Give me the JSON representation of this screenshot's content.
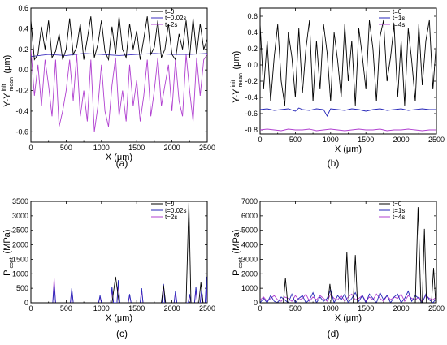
{
  "chart_data": [
    {
      "panel": "(a)",
      "type": "line",
      "xlabel": "X (μm)",
      "ylabel_main": "Y-Y",
      "ylabel_sub_top": "init",
      "ylabel_sub_bottom": "mean",
      "ylabel_unit": "(μm)",
      "xlim": [
        0,
        2500
      ],
      "ylim": [
        -0.7,
        0.6
      ],
      "xticks": [
        0,
        500,
        1000,
        1500,
        2000,
        2500
      ],
      "yticks": [
        -0.6,
        -0.4,
        -0.2,
        0.0,
        0.2,
        0.4,
        0.6
      ],
      "ytick_labels": [
        "-0.6",
        "-0.4",
        "-0.2",
        "0.0",
        "0.2",
        "0.4",
        "0.6"
      ],
      "legend_position": "top-right",
      "series": [
        {
          "name": "t=0",
          "color": "#000000",
          "x": [
            0,
            50,
            100,
            150,
            200,
            250,
            300,
            350,
            400,
            450,
            500,
            550,
            600,
            650,
            700,
            750,
            800,
            850,
            900,
            950,
            1000,
            1050,
            1100,
            1150,
            1200,
            1250,
            1300,
            1350,
            1400,
            1450,
            1500,
            1550,
            1600,
            1650,
            1700,
            1750,
            1800,
            1850,
            1900,
            1950,
            2000,
            2050,
            2100,
            2150,
            2200,
            2250,
            2300,
            2350,
            2400,
            2450,
            2500
          ],
          "y": [
            0.48,
            0.1,
            0.15,
            0.42,
            0.2,
            0.48,
            0.12,
            0.18,
            0.35,
            0.1,
            0.2,
            0.5,
            0.15,
            0.22,
            0.45,
            0.1,
            0.3,
            0.52,
            0.12,
            0.25,
            0.48,
            0.18,
            0.1,
            0.42,
            0.15,
            0.52,
            0.2,
            0.12,
            0.45,
            0.2,
            0.38,
            0.1,
            0.3,
            0.52,
            0.15,
            0.22,
            0.48,
            0.12,
            0.2,
            0.45,
            0.15,
            0.1,
            0.35,
            0.2,
            0.48,
            0.12,
            0.5,
            0.15,
            0.45,
            0.2,
            0.3
          ]
        },
        {
          "name": "t=0.02s",
          "color": "#3d2fbf",
          "x": [
            0,
            250,
            500,
            750,
            1000,
            1250,
            1500,
            1750,
            2000,
            2250,
            2500
          ],
          "y": [
            0.13,
            0.15,
            0.14,
            0.16,
            0.15,
            0.14,
            0.15,
            0.16,
            0.15,
            0.15,
            0.16
          ]
        },
        {
          "name": "t=2s",
          "color": "#b040d0",
          "x": [
            0,
            50,
            100,
            150,
            200,
            250,
            300,
            350,
            400,
            450,
            500,
            550,
            600,
            650,
            700,
            750,
            800,
            850,
            900,
            950,
            1000,
            1050,
            1100,
            1150,
            1200,
            1250,
            1300,
            1350,
            1400,
            1450,
            1500,
            1550,
            1600,
            1650,
            1700,
            1750,
            1800,
            1850,
            1900,
            1950,
            2000,
            2050,
            2100,
            2150,
            2200,
            2250,
            2300,
            2350,
            2400,
            2450,
            2500
          ],
          "y": [
            0.2,
            -0.25,
            0.05,
            -0.35,
            0.1,
            -0.15,
            -0.45,
            0.1,
            -0.55,
            -0.4,
            -0.2,
            0.1,
            -0.3,
            0.15,
            -0.45,
            -0.2,
            -0.5,
            0.1,
            -0.6,
            -0.35,
            0.05,
            -0.4,
            -0.55,
            -0.15,
            0.12,
            -0.45,
            -0.2,
            -0.5,
            0.05,
            -0.35,
            -0.1,
            -0.5,
            -0.25,
            0.1,
            -0.45,
            -0.2,
            0.12,
            -0.35,
            -0.15,
            0.05,
            -0.4,
            0.1,
            -0.3,
            -0.45,
            0.15,
            -0.2,
            -0.5,
            0.12,
            -0.25,
            0.1,
            0.15
          ]
        }
      ]
    },
    {
      "panel": "(b)",
      "type": "line",
      "xlabel": "X (μm)",
      "ylabel_main": "Y-Y",
      "ylabel_sub_top": "init",
      "ylabel_sub_bottom": "mean",
      "ylabel_unit": "(μm)",
      "xlim": [
        0,
        2500
      ],
      "ylim": [
        -0.85,
        0.7
      ],
      "xticks": [
        0,
        500,
        1000,
        1500,
        2000,
        2500
      ],
      "yticks": [
        -0.8,
        -0.6,
        -0.4,
        -0.2,
        0.0,
        0.2,
        0.4,
        0.6
      ],
      "ytick_labels": [
        "-0.8",
        "-0.6",
        "-0.4",
        "-0.2",
        "0.0",
        "0.2",
        "0.4",
        "0.6"
      ],
      "legend_position": "top-right",
      "series": [
        {
          "name": "t=0",
          "color": "#000000",
          "x": [
            0,
            50,
            100,
            150,
            200,
            250,
            300,
            350,
            400,
            450,
            500,
            550,
            600,
            650,
            700,
            750,
            800,
            850,
            900,
            950,
            1000,
            1050,
            1100,
            1150,
            1200,
            1250,
            1300,
            1350,
            1400,
            1450,
            1500,
            1550,
            1600,
            1650,
            1700,
            1750,
            1800,
            1850,
            1900,
            1950,
            2000,
            2050,
            2100,
            2150,
            2200,
            2250,
            2300,
            2350,
            2400,
            2450,
            2500
          ],
          "y": [
            0.5,
            -0.3,
            0.3,
            -0.45,
            0.1,
            0.5,
            -0.2,
            -0.5,
            0.4,
            0.1,
            -0.4,
            0.45,
            -0.35,
            0.2,
            0.55,
            -0.45,
            0.3,
            -0.3,
            0.5,
            0.15,
            -0.45,
            0.4,
            0.05,
            -0.4,
            0.5,
            -0.2,
            0.3,
            -0.5,
            0.45,
            0.1,
            -0.3,
            0.55,
            0.2,
            -0.45,
            0.35,
            0.55,
            -0.2,
            0.1,
            0.5,
            -0.4,
            0.3,
            -0.5,
            0.45,
            0.05,
            -0.45,
            0.5,
            -0.25,
            0.3,
            0.55,
            -0.3,
            0.3
          ]
        },
        {
          "name": "t=1s",
          "color": "#2626b8",
          "x": [
            0,
            100,
            200,
            300,
            400,
            500,
            550,
            600,
            700,
            800,
            900,
            950,
            1000,
            1100,
            1200,
            1300,
            1400,
            1500,
            1600,
            1700,
            1800,
            1900,
            2000,
            2100,
            2200,
            2300,
            2400,
            2500
          ],
          "y": [
            -0.55,
            -0.54,
            -0.56,
            -0.55,
            -0.54,
            -0.57,
            -0.53,
            -0.55,
            -0.56,
            -0.54,
            -0.55,
            -0.63,
            -0.54,
            -0.55,
            -0.56,
            -0.54,
            -0.55,
            -0.57,
            -0.55,
            -0.54,
            -0.56,
            -0.55,
            -0.54,
            -0.56,
            -0.55,
            -0.54,
            -0.55,
            -0.55
          ]
        },
        {
          "name": "t=4s",
          "color": "#b040d0",
          "x": [
            0,
            100,
            200,
            300,
            400,
            500,
            600,
            700,
            800,
            900,
            1000,
            1100,
            1200,
            1300,
            1400,
            1500,
            1600,
            1700,
            1800,
            1900,
            2000,
            2100,
            2200,
            2300,
            2400,
            2500
          ],
          "y": [
            -0.8,
            -0.79,
            -0.8,
            -0.81,
            -0.79,
            -0.8,
            -0.8,
            -0.79,
            -0.81,
            -0.8,
            -0.79,
            -0.8,
            -0.81,
            -0.8,
            -0.79,
            -0.8,
            -0.8,
            -0.79,
            -0.81,
            -0.8,
            -0.8,
            -0.79,
            -0.8,
            -0.81,
            -0.8,
            -0.8
          ]
        }
      ]
    },
    {
      "panel": "(c)",
      "type": "line",
      "xlabel": "X (μm)",
      "ylabel_main": "P",
      "ylabel_sub_bottom": "cont",
      "ylabel_unit": "(MPa)",
      "xlim": [
        0,
        2500
      ],
      "ylim": [
        0,
        3500
      ],
      "xticks": [
        0,
        500,
        1000,
        1500,
        2000,
        2500
      ],
      "yticks": [
        0,
        500,
        1000,
        1500,
        2000,
        2500,
        3000,
        3500
      ],
      "ytick_labels": [
        "0",
        "500",
        "1000",
        "1500",
        "2000",
        "2500",
        "3000",
        "3500"
      ],
      "legend_position": "top-right",
      "series": [
        {
          "name": "t=0",
          "color": "#000000",
          "x": [
            0,
            1150,
            1200,
            1250,
            1300,
            1850,
            1880,
            1910,
            2200,
            2240,
            2270,
            2300,
            2380,
            2410,
            2440,
            2500
          ],
          "y": [
            0,
            0,
            900,
            0,
            0,
            0,
            600,
            0,
            0,
            3450,
            0,
            0,
            0,
            700,
            0,
            0
          ]
        },
        {
          "name": "t=0.02s",
          "color": "#2626b8",
          "x": [
            0,
            310,
            330,
            350,
            560,
            580,
            600,
            960,
            980,
            1000,
            1130,
            1150,
            1170,
            1220,
            1240,
            1260,
            1380,
            1400,
            1420,
            1550,
            1570,
            1590,
            1860,
            1880,
            1900,
            2030,
            2050,
            2070,
            2230,
            2250,
            2270,
            2320,
            2340,
            2360,
            2400,
            2420,
            2440,
            2470,
            2490,
            2500
          ],
          "y": [
            0,
            0,
            650,
            0,
            0,
            500,
            0,
            0,
            250,
            0,
            0,
            550,
            0,
            0,
            780,
            0,
            0,
            300,
            0,
            0,
            500,
            0,
            0,
            650,
            0,
            0,
            400,
            0,
            0,
            300,
            0,
            0,
            550,
            0,
            0,
            450,
            0,
            0,
            900,
            0
          ]
        },
        {
          "name": "t=2s",
          "color": "#b040d0",
          "x": [
            0,
            310,
            330,
            350,
            560,
            580,
            600,
            960,
            980,
            1000,
            1130,
            1150,
            1170,
            1220,
            1240,
            1260,
            1380,
            1400,
            1420,
            1550,
            1570,
            1590,
            1860,
            1880,
            1900,
            2030,
            2050,
            2070,
            2230,
            2250,
            2270,
            2320,
            2340,
            2360,
            2400,
            2420,
            2440,
            2470,
            2490,
            2500
          ],
          "y": [
            0,
            0,
            850,
            0,
            0,
            450,
            0,
            0,
            200,
            0,
            0,
            450,
            0,
            0,
            650,
            0,
            0,
            250,
            0,
            0,
            400,
            0,
            0,
            550,
            0,
            0,
            300,
            0,
            0,
            250,
            0,
            0,
            450,
            0,
            0,
            350,
            0,
            0,
            600,
            0
          ]
        }
      ]
    },
    {
      "panel": "(d)",
      "type": "line",
      "xlabel": "X (μm)",
      "ylabel_main": "P",
      "ylabel_sub_bottom": "cont",
      "ylabel_unit": "(MPa)",
      "xlim": [
        0,
        2500
      ],
      "ylim": [
        0,
        7000
      ],
      "xticks": [
        0,
        500,
        1000,
        1500,
        2000,
        2500
      ],
      "yticks": [
        0,
        1000,
        2000,
        3000,
        4000,
        5000,
        6000,
        7000
      ],
      "ytick_labels": [
        "0",
        "1000",
        "2000",
        "3000",
        "4000",
        "5000",
        "6000",
        "7000"
      ],
      "legend_position": "top-right",
      "series": [
        {
          "name": "t=0",
          "color": "#000000",
          "x": [
            0,
            330,
            360,
            390,
            960,
            990,
            1020,
            1200,
            1230,
            1260,
            1320,
            1350,
            1380,
            2200,
            2240,
            2280,
            2300,
            2330,
            2360,
            2430,
            2460,
            2490,
            2500
          ],
          "y": [
            0,
            0,
            1700,
            0,
            0,
            1300,
            0,
            0,
            3500,
            0,
            0,
            3300,
            0,
            0,
            6600,
            0,
            0,
            5100,
            0,
            0,
            2400,
            0,
            1700
          ]
        },
        {
          "name": "t=1s",
          "color": "#2626b8",
          "x": [
            0,
            50,
            100,
            150,
            200,
            250,
            300,
            350,
            400,
            450,
            500,
            550,
            600,
            650,
            700,
            750,
            800,
            850,
            900,
            950,
            1000,
            1050,
            1100,
            1150,
            1200,
            1250,
            1300,
            1350,
            1400,
            1450,
            1500,
            1550,
            1600,
            1650,
            1700,
            1750,
            1800,
            1850,
            1900,
            1950,
            2000,
            2050,
            2100,
            2150,
            2200,
            2250,
            2300,
            2350,
            2400,
            2450,
            2500
          ],
          "y": [
            0,
            300,
            0,
            500,
            100,
            0,
            400,
            200,
            0,
            600,
            0,
            300,
            500,
            0,
            200,
            700,
            0,
            400,
            100,
            300,
            900,
            0,
            500,
            200,
            600,
            0,
            300,
            700,
            100,
            500,
            0,
            600,
            300,
            0,
            700,
            200,
            500,
            0,
            400,
            600,
            0,
            300,
            800,
            100,
            500,
            300,
            0,
            600,
            200,
            0,
            300
          ]
        },
        {
          "name": "t=4s",
          "color": "#b040d0",
          "x": [
            0,
            50,
            100,
            150,
            200,
            250,
            300,
            350,
            400,
            450,
            500,
            550,
            600,
            650,
            700,
            750,
            800,
            850,
            900,
            950,
            1000,
            1050,
            1100,
            1150,
            1200,
            1250,
            1300,
            1350,
            1400,
            1450,
            1500,
            1550,
            1600,
            1650,
            1700,
            1750,
            1800,
            1850,
            1900,
            1950,
            2000,
            2050,
            2100,
            2150,
            2200,
            2250,
            2300,
            2350,
            2400,
            2450,
            2500
          ],
          "y": [
            200,
            400,
            100,
            300,
            500,
            200,
            100,
            400,
            300,
            100,
            500,
            200,
            300,
            600,
            100,
            400,
            200,
            500,
            300,
            100,
            600,
            300,
            200,
            500,
            100,
            400,
            600,
            200,
            300,
            500,
            100,
            400,
            200,
            600,
            300,
            100,
            500,
            200,
            400,
            300,
            600,
            100,
            500,
            300,
            200,
            400,
            100,
            500,
            300,
            200,
            400
          ]
        }
      ]
    }
  ]
}
